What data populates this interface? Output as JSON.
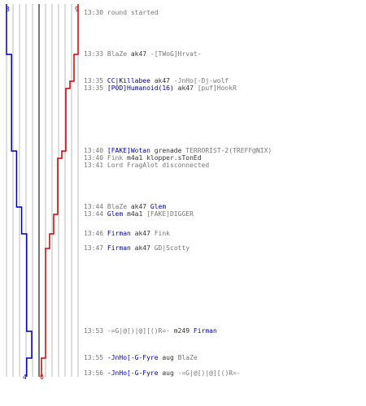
{
  "colors": {
    "t_team": "#cc0000",
    "ct_team": "#0000aa",
    "text": "#333333",
    "time": "#777777",
    "grid": "#bbbbbb",
    "center": "#777777"
  },
  "scores": {
    "ct_start": "8",
    "t_start": "9",
    "ct_end": "4",
    "t_end": "0"
  },
  "events": [
    {
      "time": "13:30",
      "parts": [
        {
          "text": "round started",
          "team": "msg"
        }
      ]
    },
    {
      "time": "13:33",
      "parts": [
        {
          "text": "BlaZe",
          "team": "t"
        },
        {
          "text": " ak47 ",
          "team": "w"
        },
        {
          "text": "-[TWoG]Hrvat-",
          "team": "t"
        }
      ]
    },
    {
      "time": "13:35",
      "parts": [
        {
          "text": "CC|Killabee",
          "team": "ct"
        },
        {
          "text": " ak47 ",
          "team": "w"
        },
        {
          "text": "-JnHo[-Dj-wolf",
          "team": "t"
        }
      ]
    },
    {
      "time": "13:35",
      "parts": [
        {
          "text": "[P0D]Humanoid(16)",
          "team": "ct"
        },
        {
          "text": " ak47 ",
          "team": "w"
        },
        {
          "text": "[puf]HookR",
          "team": "t"
        }
      ]
    },
    {
      "time": "13:40",
      "parts": [
        {
          "text": "[FAKE]Wotan",
          "team": "ct"
        },
        {
          "text": " grenade ",
          "team": "w"
        },
        {
          "text": "TERRORIST-2(TREFF@NIX)",
          "team": "t"
        }
      ]
    },
    {
      "time": "13:40",
      "parts": [
        {
          "text": "Fink",
          "team": "t"
        },
        {
          "text": " m4a1 ",
          "team": "w"
        },
        {
          "text": "klopper.sTonEd",
          "team": "nn"
        }
      ]
    },
    {
      "time": "13:41",
      "parts": [
        {
          "text": "Lord FragAlot",
          "team": "t"
        },
        {
          "text": " disconnected",
          "team": "msg"
        }
      ]
    },
    {
      "time": "13:44",
      "parts": [
        {
          "text": "BlaZe",
          "team": "t"
        },
        {
          "text": " ak47 ",
          "team": "w"
        },
        {
          "text": "Glem",
          "team": "ct"
        }
      ]
    },
    {
      "time": "13:44",
      "parts": [
        {
          "text": "Glem",
          "team": "ct"
        },
        {
          "text": " m4a1 ",
          "team": "w"
        },
        {
          "text": "[FAKE]DIGGER",
          "team": "t"
        }
      ]
    },
    {
      "time": "13:46",
      "parts": [
        {
          "text": "Firman",
          "team": "ct"
        },
        {
          "text": " ak47 ",
          "team": "w"
        },
        {
          "text": "Fink",
          "team": "t"
        }
      ]
    },
    {
      "time": "13:47",
      "parts": [
        {
          "text": "Firman",
          "team": "ct"
        },
        {
          "text": " ak47 ",
          "team": "w"
        },
        {
          "text": "GD|Scotty",
          "team": "t"
        }
      ]
    },
    {
      "time": "13:53",
      "parts": [
        {
          "text": "-=G|@[)|@][()R=-",
          "team": "t"
        },
        {
          "text": " m249 ",
          "team": "w"
        },
        {
          "text": "Firman",
          "team": "ct"
        }
      ]
    },
    {
      "time": "13:55",
      "parts": [
        {
          "text": "-JnHo[-G-Fyre",
          "team": "ct"
        },
        {
          "text": " aug ",
          "team": "w"
        },
        {
          "text": "BlaZe",
          "team": "t"
        }
      ]
    },
    {
      "time": "13:56",
      "parts": [
        {
          "text": "-JnHo[-G-Fyre",
          "team": "ct"
        },
        {
          "text": " aug ",
          "team": "w"
        },
        {
          "text": "-=G|@[)|@][()R=-",
          "team": "t"
        }
      ]
    }
  ],
  "chart_data": {
    "type": "line",
    "x_label": "",
    "y_label": "",
    "series": [
      {
        "team": "ct",
        "alive": [
          8,
          7,
          7,
          7,
          6,
          6,
          6,
          5,
          5,
          4,
          4,
          3,
          4,
          4
        ]
      },
      {
        "team": "t",
        "alive": [
          9,
          8,
          7,
          6,
          5,
          4,
          4,
          4,
          3,
          2,
          1,
          1,
          0,
          0
        ]
      }
    ]
  }
}
